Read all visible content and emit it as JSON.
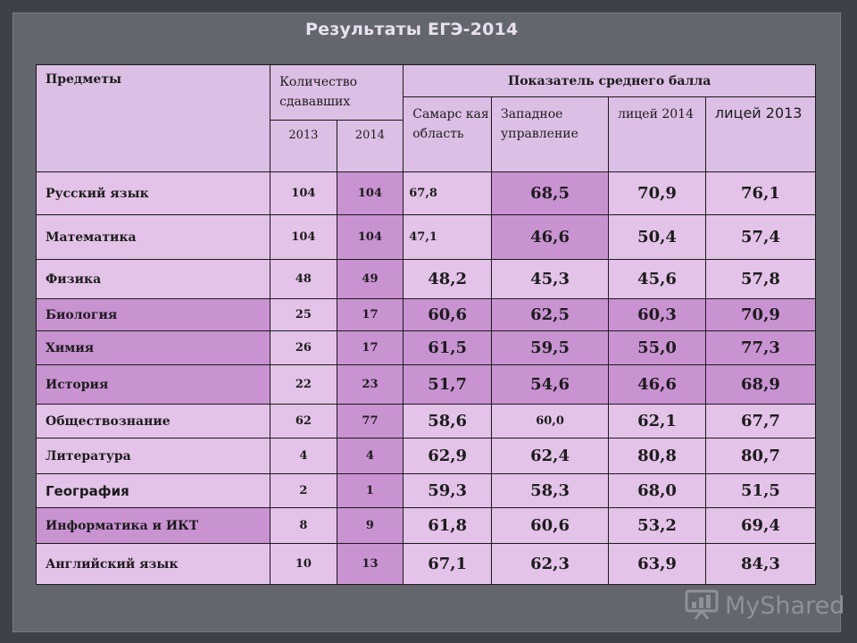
{
  "title": "Результаты ЕГЭ-2014",
  "headers": {
    "subjects": "Предметы",
    "count": "Количество сдававших",
    "avg": "Показатель среднего балла",
    "y2013": "2013",
    "y2014": "2014",
    "samara": "Самарс кая область",
    "west": "Западное управление",
    "lyc2014": "лицей 2014",
    "lyc2013": "лицей 2013"
  },
  "rows": [
    {
      "subject": "Русский язык",
      "c2013": "104",
      "c2014": "104",
      "samara": "67,8",
      "west": "68,5",
      "lyc2014": "70,9",
      "lyc2013": "76,1"
    },
    {
      "subject": "Математика",
      "c2013": "104",
      "c2014": "104",
      "samara": "47,1",
      "west": "46,6",
      "lyc2014": "50,4",
      "lyc2013": "57,4"
    },
    {
      "subject": "Физика",
      "c2013": "48",
      "c2014": "49",
      "samara": "48,2",
      "west": "45,3",
      "lyc2014": "45,6",
      "lyc2013": "57,8"
    },
    {
      "subject": "Биология",
      "c2013": "25",
      "c2014": "17",
      "samara": "60,6",
      "west": "62,5",
      "lyc2014": "60,3",
      "lyc2013": "70,9"
    },
    {
      "subject": "Химия",
      "c2013": "26",
      "c2014": "17",
      "samara": "61,5",
      "west": "59,5",
      "lyc2014": "55,0",
      "lyc2013": "77,3"
    },
    {
      "subject": "История",
      "c2013": "22",
      "c2014": "23",
      "samara": "51,7",
      "west": "54,6",
      "lyc2014": "46,6",
      "lyc2013": "68,9"
    },
    {
      "subject": "Обществознание",
      "c2013": "62",
      "c2014": "77",
      "samara": "58,6",
      "west": "60,0",
      "lyc2014": "62,1",
      "lyc2013": "67,7"
    },
    {
      "subject": "Литература",
      "c2013": "4",
      "c2014": "4",
      "samara": "62,9",
      "west": "62,4",
      "lyc2014": "80,8",
      "lyc2013": "80,7"
    },
    {
      "subject": "География",
      "c2013": "2",
      "c2014": "1",
      "samara": "59,3",
      "west": "58,3",
      "lyc2014": "68,0",
      "lyc2013": "51,5"
    },
    {
      "subject": "Информатика и ИКТ",
      "c2013": "8",
      "c2014": "9",
      "samara": "61,8",
      "west": "60,6",
      "lyc2014": "53,2",
      "lyc2013": "69,4"
    },
    {
      "subject": "Английский язык",
      "c2013": "10",
      "c2014": "13",
      "samara": "67,1",
      "west": "62,3",
      "lyc2014": "63,9",
      "lyc2013": "84,3"
    }
  ],
  "logo": {
    "text": "MyShared",
    "icon": "presentation-icon"
  },
  "colors": {
    "light": "#e3c3e7",
    "dark": "#c993d2",
    "header": "#dcbfe4",
    "background": "#64666e"
  }
}
